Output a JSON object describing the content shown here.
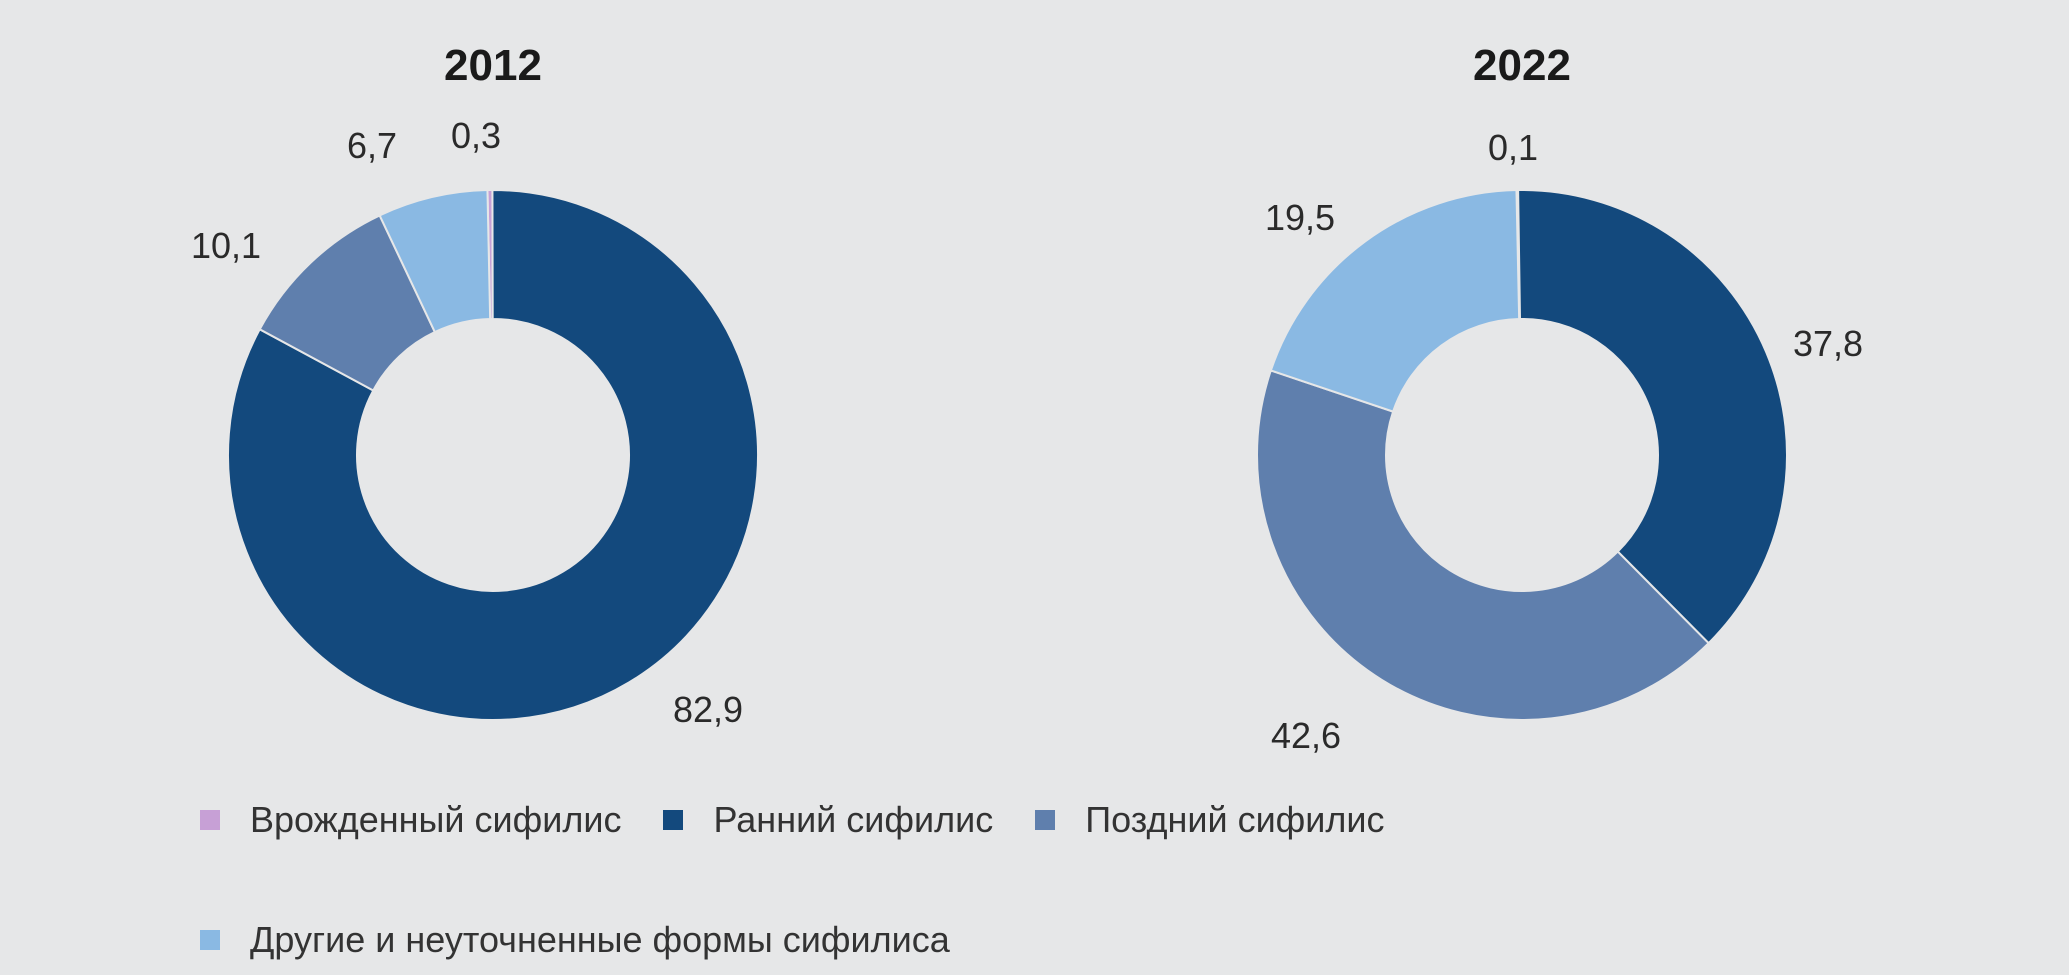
{
  "chart_data": [
    {
      "type": "pie",
      "title": "2012",
      "series": [
        {
          "name": "Врожденный сифилис",
          "value": 0.3,
          "label": "0,3"
        },
        {
          "name": "Ранний сифилис",
          "value": 82.9,
          "label": "82,9"
        },
        {
          "name": "Поздний сифилис",
          "value": 10.1,
          "label": "10,1"
        },
        {
          "name": "Другие и неуточненные формы сифилиса",
          "value": 6.7,
          "label": "6,7"
        }
      ]
    },
    {
      "type": "pie",
      "title": "2022",
      "series": [
        {
          "name": "Врожденный сифилис",
          "value": 0.1,
          "label": "0,1"
        },
        {
          "name": "Ранний сифилис",
          "value": 37.8,
          "label": "37,8"
        },
        {
          "name": "Поздний сифилис",
          "value": 42.6,
          "label": "42,6"
        },
        {
          "name": "Другие и неуточненные формы сифилиса",
          "value": 19.5,
          "label": "19,5"
        }
      ]
    }
  ],
  "colors": {
    "Врожденный сифилис": "#c7a0d6",
    "Ранний сифилис": "#13497d",
    "Поздний сифилис": "#5f7fad",
    "Другие и неуточненные формы сифилиса": "#8ab9e3"
  },
  "legend": {
    "items": [
      {
        "label": "Врожденный сифилис"
      },
      {
        "label": "Ранний сифилис"
      },
      {
        "label": "Поздний сифилис"
      },
      {
        "label": "Другие и неуточненные формы сифилиса"
      }
    ]
  }
}
